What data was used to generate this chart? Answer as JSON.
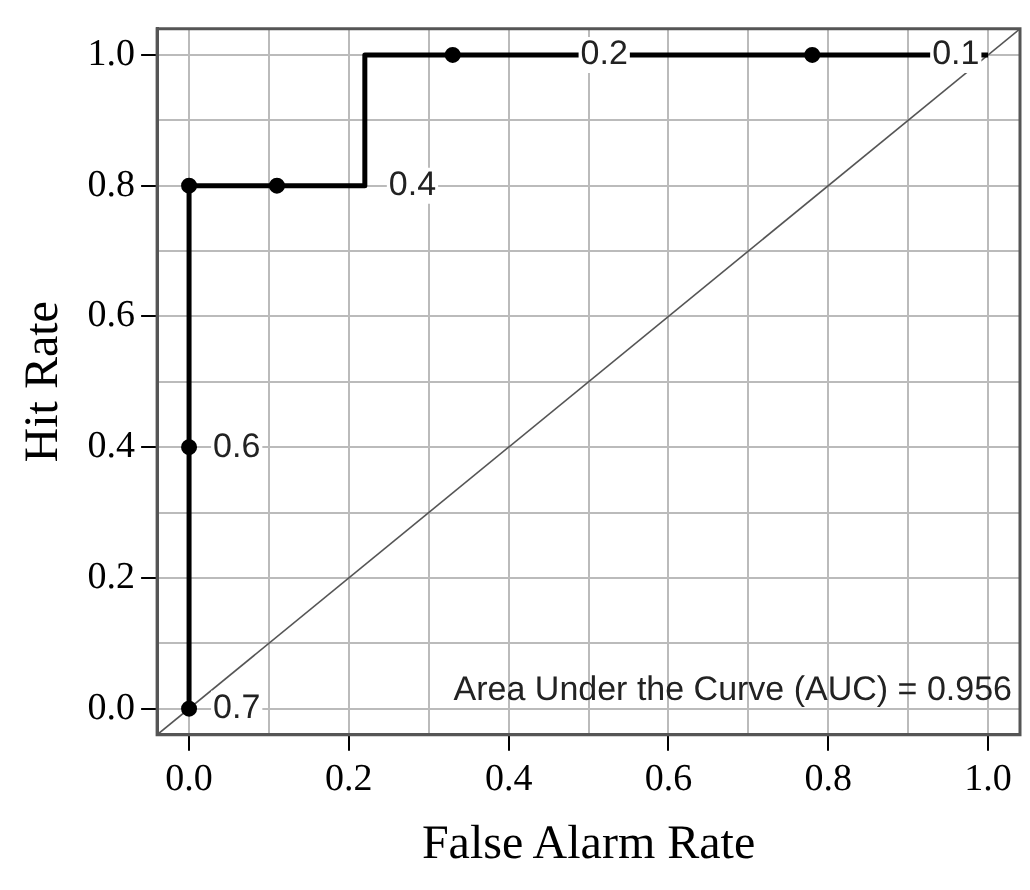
{
  "chart_data": {
    "type": "line",
    "xlabel": "False Alarm Rate",
    "ylabel": "Hit Rate",
    "xlim": [
      -0.04,
      1.04
    ],
    "ylim": [
      -0.04,
      1.04
    ],
    "xticks": [
      {
        "value": 0,
        "label": "0.0"
      },
      {
        "value": 0.1,
        "label": null
      },
      {
        "value": 0.2,
        "label": "0.2"
      },
      {
        "value": 0.3,
        "label": null
      },
      {
        "value": 0.4,
        "label": "0.4"
      },
      {
        "value": 0.5,
        "label": null
      },
      {
        "value": 0.6,
        "label": "0.6"
      },
      {
        "value": 0.7,
        "label": null
      },
      {
        "value": 0.8,
        "label": "0.8"
      },
      {
        "value": 0.9,
        "label": null
      },
      {
        "value": 1,
        "label": "1.0"
      }
    ],
    "yticks": [
      {
        "value": 0,
        "label": "0.0"
      },
      {
        "value": 0.1,
        "label": null
      },
      {
        "value": 0.2,
        "label": "0.2"
      },
      {
        "value": 0.3,
        "label": null
      },
      {
        "value": 0.4,
        "label": "0.4"
      },
      {
        "value": 0.5,
        "label": null
      },
      {
        "value": 0.6,
        "label": "0.6"
      },
      {
        "value": 0.7,
        "label": null
      },
      {
        "value": 0.8,
        "label": "0.8"
      },
      {
        "value": 0.9,
        "label": null
      },
      {
        "value": 1,
        "label": "1.0"
      }
    ],
    "grid": true,
    "legend": false,
    "series": [
      {
        "color": "#000000",
        "marker": "none",
        "x": [
          0,
          0,
          0.22,
          0.22,
          1
        ],
        "values": [
          0,
          0.8,
          0.8,
          1,
          1
        ]
      },
      {
        "type": "scatter",
        "color": "#000000",
        "marker": "circle",
        "x": [
          0,
          0,
          0,
          0.11,
          0.33,
          0.78
        ],
        "values": [
          0,
          0.4,
          0.8,
          0.8,
          1,
          1
        ]
      },
      {
        "type": "line",
        "color": "#555555",
        "marker": "none",
        "x": [
          -0.04,
          1.04
        ],
        "values": [
          -0.04,
          1.04
        ]
      }
    ],
    "annotations": [
      {
        "text": "0.7",
        "x": 0,
        "y": 0
      },
      {
        "text": "0.6",
        "x": 0,
        "y": 0.4
      },
      {
        "text": "0.4",
        "x": 0.22,
        "y": 0.8
      },
      {
        "text": "0.2",
        "x": 0.46,
        "y": 1
      },
      {
        "text": "0.1",
        "x": 0.9,
        "y": 1
      },
      "Area Under the Curve (AUC) = 0.956"
    ]
  }
}
